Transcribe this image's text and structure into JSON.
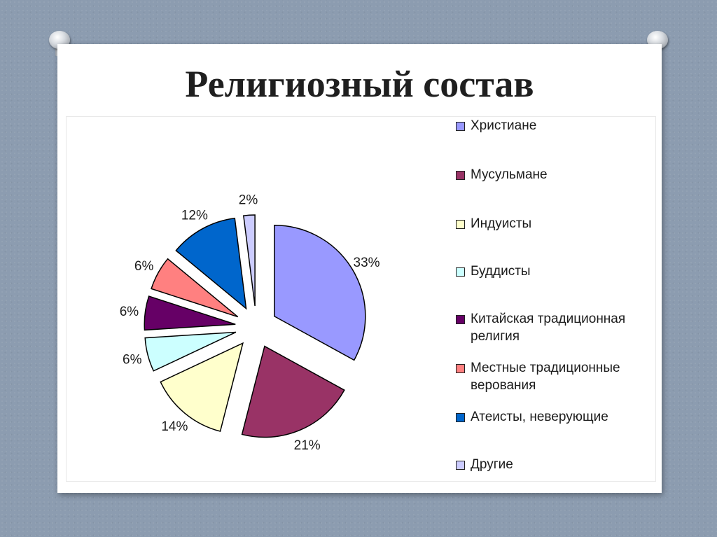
{
  "title": "Религиозный состав",
  "chart_data": {
    "type": "pie",
    "exploded": true,
    "legend_position": "right",
    "slices": [
      {
        "label": "Христиане",
        "value": 33,
        "value_label": "33%",
        "color": "#9999ff"
      },
      {
        "label": "Мусульмане",
        "value": 21,
        "value_label": "21%",
        "color": "#993366"
      },
      {
        "label": "Индуисты",
        "value": 14,
        "value_label": "14%",
        "color": "#ffffcc"
      },
      {
        "label": "Буддисты",
        "value": 6,
        "value_label": "6%",
        "color": "#ccffff"
      },
      {
        "label": "Китайская традиционная религия",
        "value": 6,
        "value_label": "6%",
        "color": "#660066"
      },
      {
        "label": "Местные традиционные верования",
        "value": 6,
        "value_label": "6%",
        "color": "#ff8080"
      },
      {
        "label": "Атеисты, неверующие",
        "value": 12,
        "value_label": "12%",
        "color": "#0066cc"
      },
      {
        "label": "Другие",
        "value": 2,
        "value_label": "2%",
        "color": "#ccccff"
      }
    ]
  }
}
